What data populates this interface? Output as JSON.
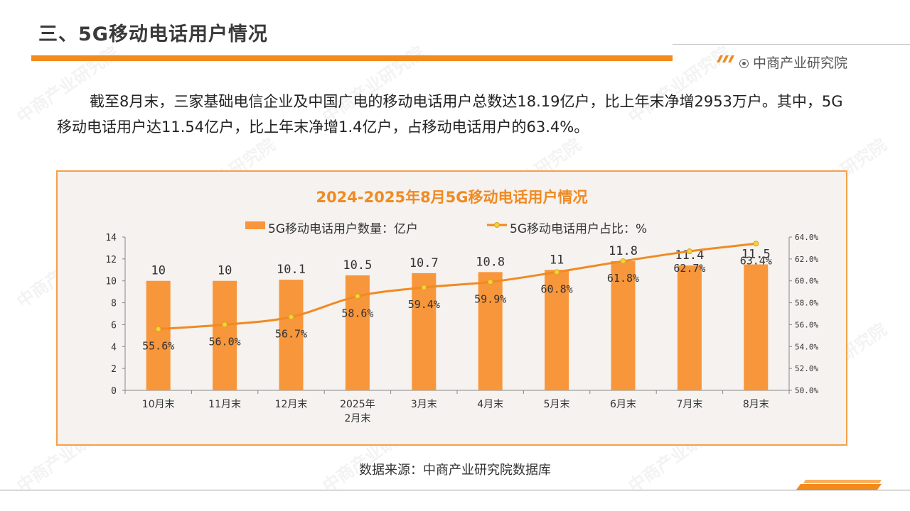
{
  "header": {
    "title": "三、5G移动电话用户情况",
    "brand": "中商产业研究院"
  },
  "paragraph": "截至8月末，三家基础电信企业及中国广电的移动电话用户总数达18.19亿户，比上年末净增2953万户。其中，5G移动电话用户达11.54亿户，比上年末净增1.4亿户，占移动电话用户的63.4%。",
  "source": "数据来源：中商产业研究院数据库",
  "watermark": "中商产业研究院",
  "colors": {
    "accent": "#f28a1c",
    "bar": "#f8963b",
    "line": "#f08a22",
    "marker": "#f5d23a",
    "border": "#f5a04b"
  },
  "chart_data": {
    "type": "bar+line",
    "title": "2024-2025年8月5G移动电话用户情况",
    "categories": [
      "10月末",
      "11月末",
      "12月末",
      "2025年\n2月末",
      "3月末",
      "4月末",
      "5月末",
      "6月末",
      "7月末",
      "8月末"
    ],
    "series": [
      {
        "name": "5G移动电话用户数量：亿户",
        "type": "bar",
        "axis": "left",
        "values": [
          10,
          10,
          10.1,
          10.5,
          10.7,
          10.8,
          11,
          11.8,
          11.4,
          11.5
        ],
        "labels": [
          "10",
          "10",
          "10.1",
          "10.5",
          "10.7",
          "10.8",
          "11",
          "11.8",
          "11.4",
          "11.5"
        ]
      },
      {
        "name": "5G移动电话用户占比：%",
        "type": "line",
        "axis": "right",
        "values": [
          55.6,
          56.0,
          56.7,
          58.6,
          59.4,
          59.9,
          60.8,
          61.8,
          62.7,
          63.4
        ],
        "labels": [
          "55.6%",
          "56.0%",
          "56.7%",
          "58.6%",
          "59.4%",
          "59.9%",
          "60.8%",
          "61.8%",
          "62.7%",
          "63.4%"
        ]
      }
    ],
    "left_axis": {
      "min": 0,
      "max": 14,
      "step": 2,
      "ticks": [
        "0",
        "2",
        "4",
        "6",
        "8",
        "10",
        "12",
        "14"
      ]
    },
    "right_axis": {
      "min": 50,
      "max": 64,
      "step": 2,
      "ticks": [
        "50.0%",
        "52.0%",
        "54.0%",
        "56.0%",
        "58.0%",
        "60.0%",
        "62.0%",
        "64.0%"
      ]
    }
  }
}
